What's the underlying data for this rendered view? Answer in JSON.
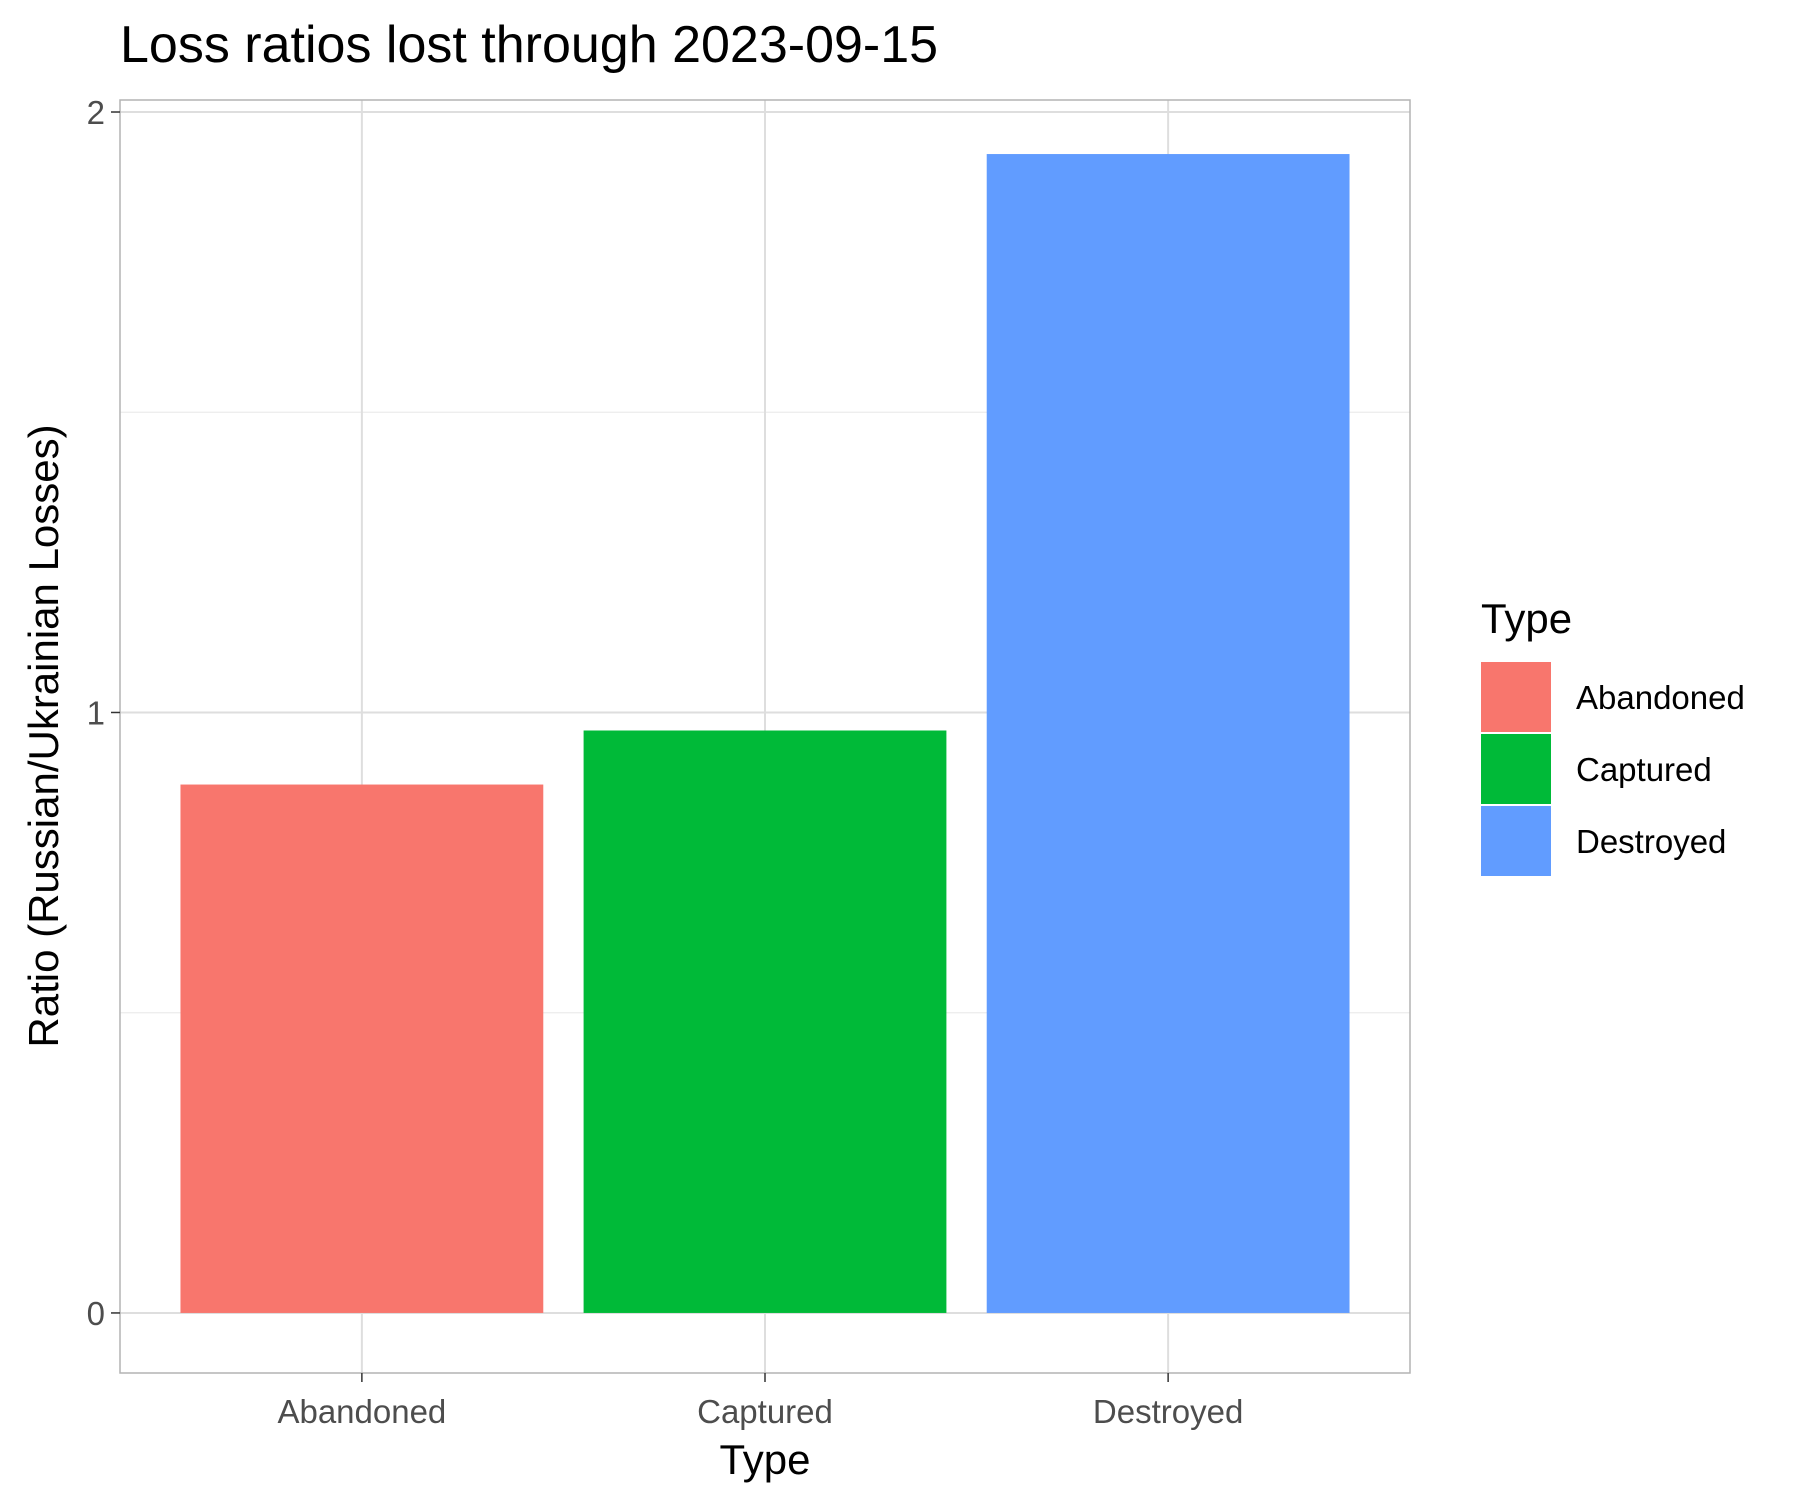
{
  "chart_data": {
    "type": "bar",
    "title": "Loss ratios lost through 2023-09-15",
    "xlabel": "Type",
    "ylabel": "Ratio (Russian/Ukrainian Losses)",
    "categories": [
      "Abandoned",
      "Captured",
      "Destroyed"
    ],
    "values": [
      0.88,
      0.97,
      1.93
    ],
    "colors": [
      "#F8766D",
      "#00BA38",
      "#619CFF"
    ],
    "ylim": [
      -0.1,
      2.02
    ],
    "yticks": [
      0,
      1,
      2
    ],
    "grid": true,
    "legend": {
      "title": "Type",
      "position": "right",
      "items": [
        "Abandoned",
        "Captured",
        "Destroyed"
      ]
    }
  }
}
